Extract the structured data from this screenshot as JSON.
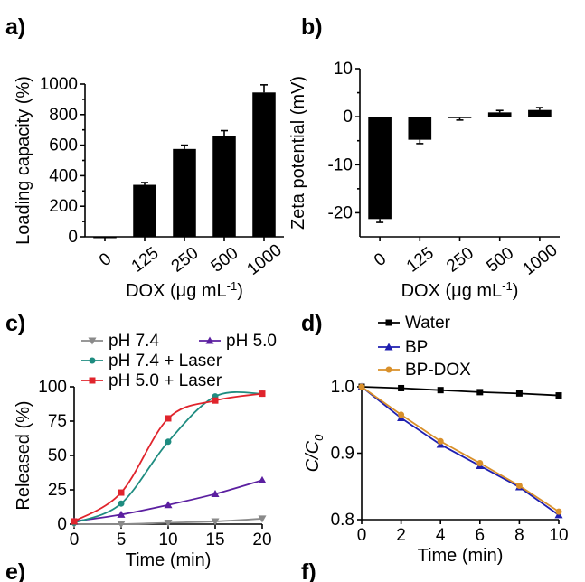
{
  "panel_labels": {
    "a": "a)",
    "b": "b)",
    "c": "c)",
    "d": "d)",
    "e": "e)",
    "f": "f)"
  },
  "chart_data": [
    {
      "id": "a",
      "type": "bar",
      "categories": [
        "0",
        "125",
        "250",
        "500",
        "1000"
      ],
      "values": [
        0,
        340,
        575,
        660,
        945
      ],
      "errors": [
        0,
        15,
        25,
        35,
        50
      ],
      "xlabel": "DOX (μg mL⁻¹)",
      "ylabel": "Loading capacity (%)",
      "ylim": [
        0,
        1000
      ],
      "yticks": [
        "0",
        "200",
        "400",
        "600",
        "800",
        "1000"
      ],
      "color": "#000000"
    },
    {
      "id": "b",
      "type": "bar",
      "categories": [
        "0",
        "125",
        "250",
        "500",
        "1000"
      ],
      "values": [
        -21.3,
        -4.8,
        -0.3,
        0.9,
        1.4
      ],
      "errors": [
        0.7,
        0.8,
        0.4,
        0.4,
        0.5
      ],
      "xlabel": "DOX (μg mL⁻¹)",
      "ylabel": "Zeta potential (mV)",
      "ylim": [
        -25,
        10
      ],
      "yticks": [
        "10",
        "0",
        "-10",
        "-20"
      ],
      "color": "#000000"
    },
    {
      "id": "c",
      "type": "line",
      "xlabel": "Time (min)",
      "ylabel": "Released (%)",
      "xlim": [
        0,
        20
      ],
      "ylim": [
        0,
        100
      ],
      "xticks": [
        "0",
        "5",
        "10",
        "15",
        "20"
      ],
      "yticks": [
        "0",
        "25",
        "50",
        "75",
        "100"
      ],
      "series": [
        {
          "name": "pH 7.4",
          "color": "#8a8a8a",
          "marker": "triangle-down",
          "x": [
            0,
            5,
            10,
            15,
            20
          ],
          "y": [
            0,
            0,
            1,
            2,
            4
          ]
        },
        {
          "name": "pH 5.0",
          "color": "#5b1fa0",
          "marker": "triangle-up",
          "x": [
            0,
            5,
            10,
            15,
            20
          ],
          "y": [
            2,
            7,
            14,
            22,
            32
          ]
        },
        {
          "name": "pH 7.4 + Laser",
          "color": "#1e8c80",
          "marker": "circle",
          "x": [
            0,
            5,
            10,
            15,
            20
          ],
          "y": [
            1,
            15,
            60,
            93,
            95
          ]
        },
        {
          "name": "pH 5.0 + Laser",
          "color": "#e0242c",
          "marker": "square",
          "x": [
            0,
            5,
            10,
            15,
            20
          ],
          "y": [
            2,
            23,
            77,
            90,
            95
          ]
        }
      ]
    },
    {
      "id": "d",
      "type": "line",
      "xlabel": "Time (min)",
      "ylabel": "C/C0",
      "xlim": [
        0,
        10
      ],
      "ylim": [
        0.8,
        1.0
      ],
      "xticks": [
        "0",
        "2",
        "4",
        "6",
        "8",
        "10"
      ],
      "yticks": [
        "0.8",
        "0.9",
        "1.0"
      ],
      "series": [
        {
          "name": "Water",
          "color": "#000000",
          "marker": "square",
          "x": [
            0,
            2,
            4,
            6,
            8,
            10
          ],
          "y": [
            1.0,
            0.998,
            0.995,
            0.992,
            0.99,
            0.987
          ]
        },
        {
          "name": "BP",
          "color": "#1f1fb0",
          "marker": "triangle-up",
          "x": [
            0,
            2,
            4,
            6,
            8,
            10
          ],
          "y": [
            1.0,
            0.953,
            0.913,
            0.881,
            0.849,
            0.807
          ]
        },
        {
          "name": "BP-DOX",
          "color": "#d9902a",
          "marker": "circle",
          "x": [
            0,
            2,
            4,
            6,
            8,
            10
          ],
          "y": [
            1.0,
            0.958,
            0.918,
            0.885,
            0.851,
            0.812
          ]
        }
      ]
    }
  ]
}
